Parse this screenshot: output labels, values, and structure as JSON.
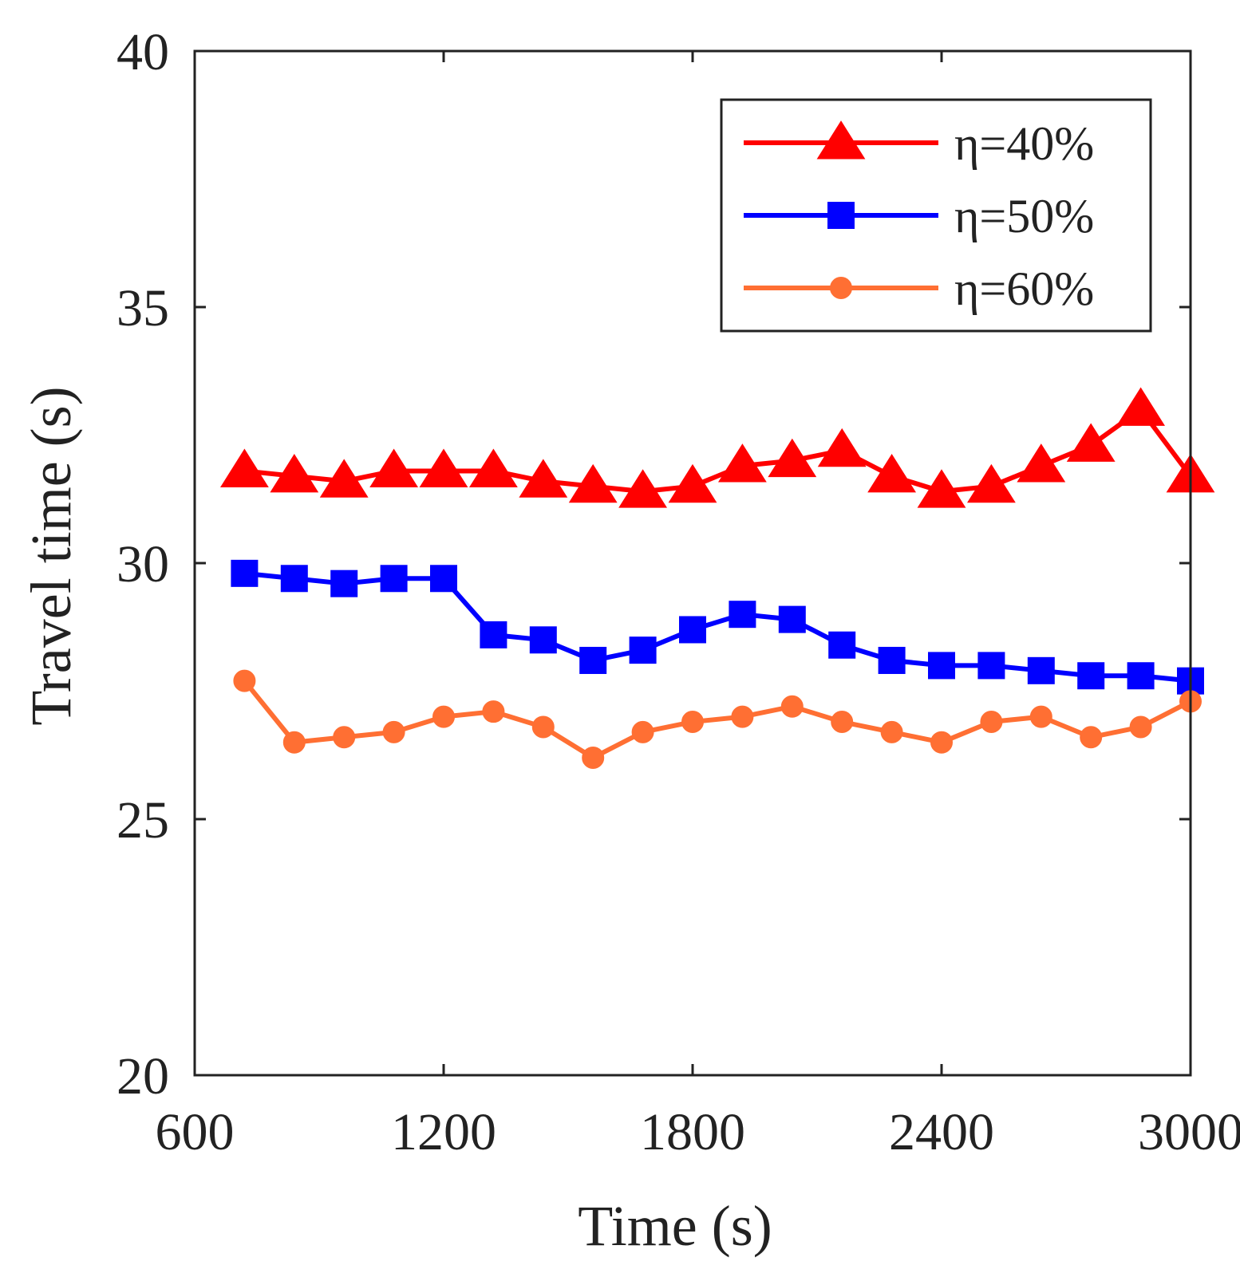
{
  "chart_data": {
    "type": "line",
    "title": "",
    "xlabel": "Time (s)",
    "ylabel": "Travel time (s)",
    "xlim": [
      600,
      3000
    ],
    "ylim": [
      20,
      40
    ],
    "xticks": [
      600,
      1200,
      1800,
      2400,
      3000
    ],
    "yticks": [
      20,
      25,
      30,
      35,
      40
    ],
    "grid": false,
    "legend_position": "top-right",
    "x": [
      720,
      840,
      960,
      1080,
      1200,
      1320,
      1440,
      1560,
      1680,
      1800,
      1920,
      2040,
      2160,
      2280,
      2400,
      2520,
      2640,
      2760,
      2880,
      3000
    ],
    "series": [
      {
        "name": "η=40%",
        "color": "#ff0000",
        "marker": "triangle",
        "values": [
          31.8,
          31.7,
          31.6,
          31.8,
          31.8,
          31.8,
          31.6,
          31.5,
          31.4,
          31.5,
          31.9,
          32.0,
          32.2,
          31.7,
          31.4,
          31.5,
          31.9,
          32.3,
          33.0,
          31.7
        ]
      },
      {
        "name": "η=50%",
        "color": "#0000ff",
        "marker": "square",
        "values": [
          29.8,
          29.7,
          29.6,
          29.7,
          29.7,
          28.6,
          28.5,
          28.1,
          28.3,
          28.7,
          29.0,
          28.9,
          28.4,
          28.1,
          28.0,
          28.0,
          27.9,
          27.8,
          27.8,
          27.7
        ]
      },
      {
        "name": "η=60%",
        "color": "#ff6f33",
        "marker": "circle",
        "values": [
          27.7,
          26.5,
          26.6,
          26.7,
          27.0,
          27.1,
          26.8,
          26.2,
          26.7,
          26.9,
          27.0,
          27.2,
          26.9,
          26.7,
          26.5,
          26.9,
          27.0,
          26.6,
          26.8,
          27.3
        ]
      }
    ]
  }
}
